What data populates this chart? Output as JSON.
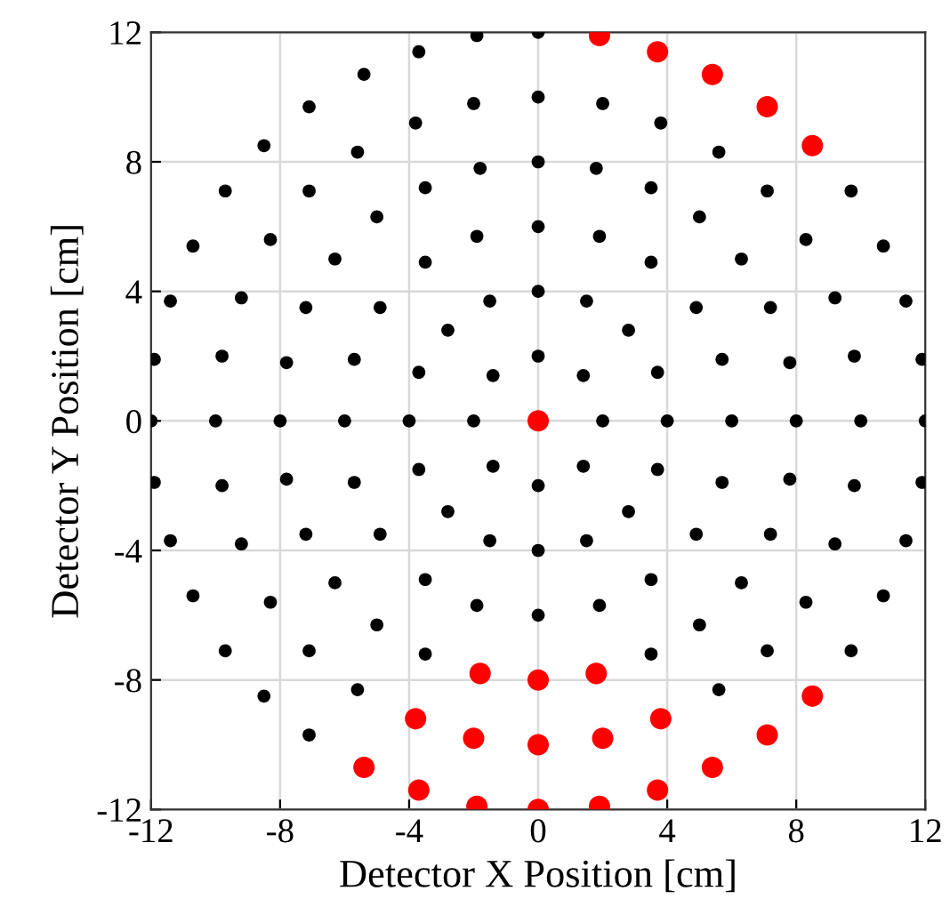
{
  "chart_data": {
    "type": "scatter",
    "xlabel": "Detector X Position [cm]",
    "ylabel": "Detector Y Position [cm]",
    "xlim": [
      -12,
      12
    ],
    "ylim": [
      -12,
      12
    ],
    "xticks": [
      -12,
      -8,
      -4,
      0,
      4,
      8,
      12
    ],
    "yticks": [
      -12,
      -8,
      -4,
      0,
      4,
      8,
      12
    ],
    "grid": true,
    "marker": "circle",
    "legend": false,
    "series": [
      {
        "color": "#000000",
        "x": [
          2,
          1.4,
          0,
          -1.4,
          -2,
          -1.4,
          0,
          1.4,
          4,
          3.7,
          2.8,
          1.5,
          0,
          -1.5,
          -2.8,
          -3.7,
          -4,
          -3.7,
          -2.8,
          -1.5,
          0,
          1.5,
          2.8,
          3.7,
          6,
          5.7,
          4.9,
          3.5,
          1.9,
          0,
          -1.9,
          -3.5,
          -4.9,
          -5.7,
          -6,
          -5.7,
          -4.9,
          -3.5,
          -1.9,
          0,
          1.9,
          3.5,
          4.9,
          5.7,
          8,
          7.8,
          7.2,
          6.3,
          5.0,
          3.5,
          1.8,
          0,
          -1.8,
          -3.5,
          -5.0,
          -6.3,
          -7.2,
          -7.8,
          -8,
          -7.8,
          -7.2,
          -6.3,
          -5.0,
          -3.5,
          3.5,
          5.0,
          6.3,
          7.2,
          7.8,
          10,
          9.8,
          9.2,
          8.3,
          7.1,
          5.6,
          3.8,
          2.0,
          0,
          -2.0,
          -3.8,
          -5.6,
          -7.1,
          -8.3,
          -9.2,
          -9.8,
          -10,
          -9.8,
          -9.2,
          -8.3,
          -7.1,
          -5.6,
          5.6,
          7.1,
          8.3,
          9.2,
          9.8,
          12,
          11.9,
          11.4,
          10.7,
          9.7,
          0,
          -1.9,
          -3.7,
          -5.4,
          -7.1,
          -8.5,
          -9.7,
          -10.7,
          -11.4,
          -11.9,
          -12,
          -11.9,
          -11.4,
          -10.7,
          -9.7,
          -8.5,
          -7.1,
          9.7,
          10.7,
          11.4,
          11.9
        ],
        "values": [
          0,
          1.4,
          2,
          1.4,
          0,
          -1.4,
          -2,
          -1.4,
          0,
          1.5,
          2.8,
          3.7,
          4,
          3.7,
          2.8,
          1.5,
          0,
          -1.5,
          -2.8,
          -3.7,
          -4,
          -3.7,
          -2.8,
          -1.5,
          0,
          1.9,
          3.5,
          4.9,
          5.7,
          6,
          5.7,
          4.9,
          3.5,
          1.9,
          0,
          -1.9,
          -3.5,
          -4.9,
          -5.7,
          -6,
          -5.7,
          -4.9,
          -3.5,
          -1.9,
          0,
          1.8,
          3.5,
          5.0,
          6.3,
          7.2,
          7.8,
          8,
          7.8,
          7.2,
          6.3,
          5.0,
          3.5,
          1.8,
          0,
          -1.8,
          -3.5,
          -5.0,
          -6.3,
          -7.2,
          -7.2,
          -6.3,
          -5.0,
          -3.5,
          -1.8,
          0,
          2.0,
          3.8,
          5.6,
          7.1,
          8.3,
          9.2,
          9.8,
          10,
          9.8,
          9.2,
          8.3,
          7.1,
          5.6,
          3.8,
          2.0,
          0,
          -2.0,
          -3.8,
          -5.6,
          -7.1,
          -8.3,
          -8.3,
          -7.1,
          -5.6,
          -3.8,
          -2.0,
          0,
          1.9,
          3.7,
          5.4,
          7.1,
          12,
          11.9,
          11.4,
          10.7,
          9.7,
          8.5,
          7.1,
          5.4,
          3.7,
          1.9,
          0,
          -1.9,
          -3.7,
          -5.4,
          -7.1,
          -8.5,
          -9.7,
          -7.1,
          -5.4,
          -3.7,
          -1.9
        ]
      },
      {
        "color": "#ff0000",
        "x": [
          0,
          8.5,
          7.1,
          5.4,
          3.7,
          1.9,
          -5.4,
          -3.7,
          -1.9,
          0,
          1.9,
          3.7,
          5.4,
          7.1,
          8.5,
          -3.8,
          -2.0,
          0,
          2.0,
          3.8,
          -1.8,
          0,
          1.8
        ],
        "values": [
          0,
          8.5,
          9.7,
          10.7,
          11.4,
          11.9,
          -10.7,
          -11.4,
          -11.9,
          -12,
          -11.9,
          -11.4,
          -10.7,
          -9.7,
          -8.5,
          -9.2,
          -9.8,
          -10,
          -9.8,
          -9.2,
          -7.8,
          -8,
          -7.8
        ]
      }
    ]
  }
}
